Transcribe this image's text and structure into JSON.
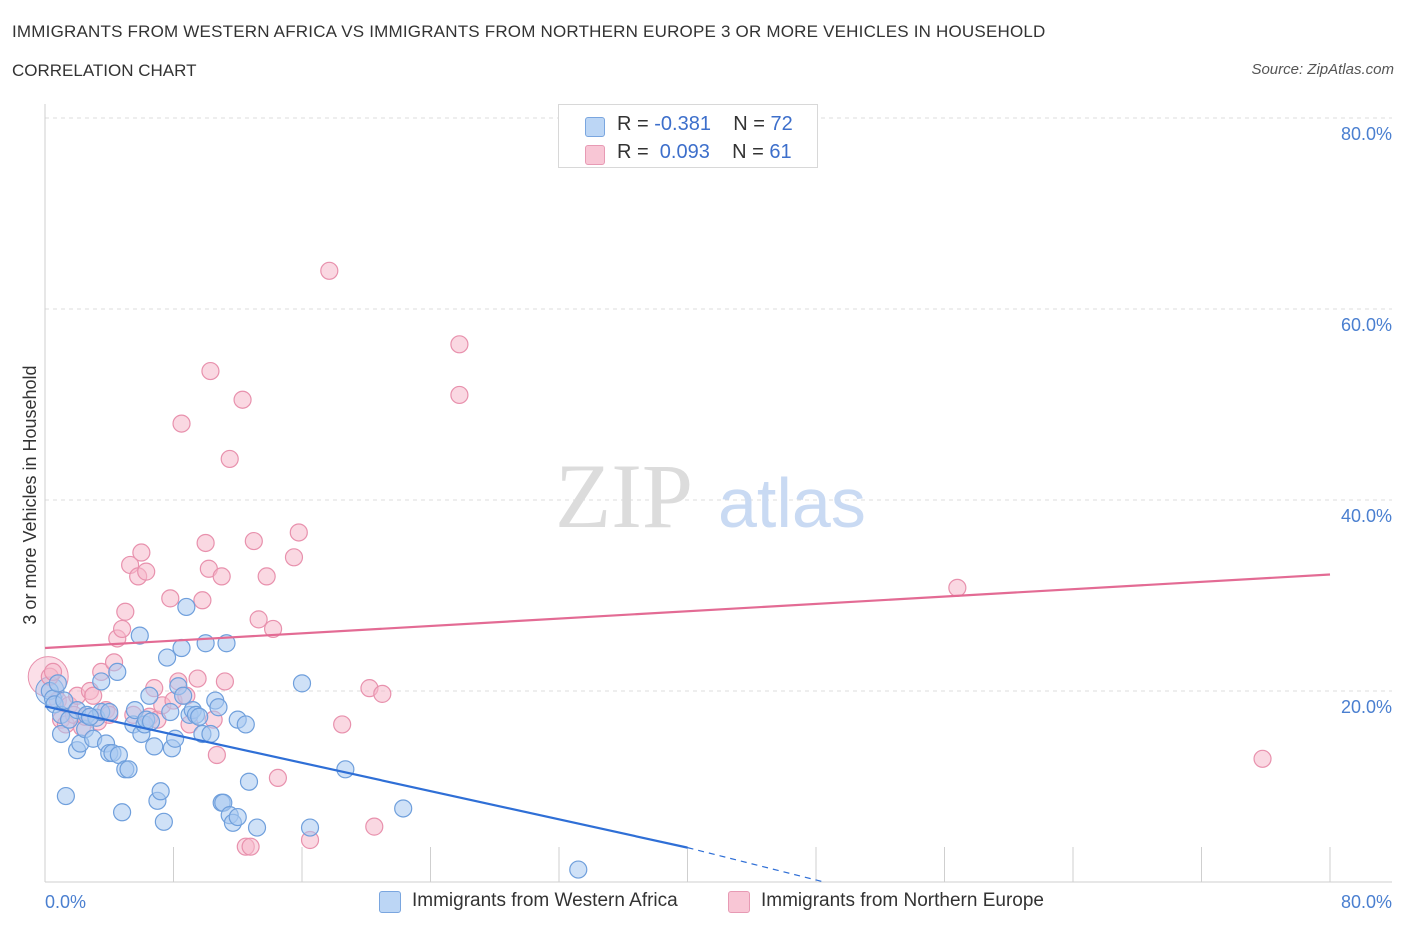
{
  "header": {
    "title": "IMMIGRANTS FROM WESTERN AFRICA VS IMMIGRANTS FROM NORTHERN EUROPE 3 OR MORE VEHICLES IN HOUSEHOLD",
    "subtitle": "CORRELATION CHART",
    "source": "Source: ZipAtlas.com"
  },
  "colors": {
    "blue_fill": "#a8c8f0",
    "blue_stroke": "#6f9fdc",
    "blue_line": "#2f6fd6",
    "pink_fill": "#f6b8cb",
    "pink_stroke": "#e891ad",
    "pink_line": "#e36b94",
    "grid": "#dcdcdc",
    "tick_text": "#4a7fd0"
  },
  "legend": {
    "series": [
      {
        "r_label": "R = ",
        "r_value": "-0.381",
        "n_label": "N = ",
        "n_value": "72"
      },
      {
        "r_label": "R = ",
        "r_value": " 0.093",
        "n_label": "N = ",
        "n_value": "61"
      }
    ]
  },
  "watermark": {
    "zip": "ZIP",
    "atlas": "atlas"
  },
  "chart_data": {
    "type": "scatter",
    "title": "IMMIGRANTS FROM WESTERN AFRICA VS IMMIGRANTS FROM NORTHERN EUROPE 3 OR MORE VEHICLES IN HOUSEHOLD",
    "xlabel": "",
    "ylabel": "3 or more Vehicles in Household",
    "xlim": [
      0,
      80
    ],
    "ylim": [
      0,
      80
    ],
    "x_tick_labels": [
      "0.0%",
      "80.0%"
    ],
    "y_ticks": [
      20,
      40,
      60,
      80
    ],
    "y_tick_labels": [
      "20.0%",
      "40.0%",
      "60.0%",
      "80.0%"
    ],
    "grid": true,
    "series": [
      {
        "name": "Immigrants from Western Africa",
        "r": -0.381,
        "n": 72,
        "trend": {
          "x0": 0,
          "y0": 18.4,
          "x1": 40,
          "y1": 3.6,
          "dash_to_x": 48.5,
          "dash_to_y": 0
        },
        "points": [
          [
            0.3,
            20.0
          ],
          [
            0.5,
            19.2
          ],
          [
            0.6,
            18.6
          ],
          [
            0.8,
            20.8
          ],
          [
            1.0,
            17.5
          ],
          [
            1.2,
            19.0
          ],
          [
            1.0,
            15.5
          ],
          [
            1.5,
            17.0
          ],
          [
            1.3,
            9.0
          ],
          [
            2.0,
            13.8
          ],
          [
            2.0,
            18.0
          ],
          [
            2.2,
            14.5
          ],
          [
            2.5,
            16.0
          ],
          [
            2.6,
            17.5
          ],
          [
            3.0,
            15.0
          ],
          [
            3.2,
            17.2
          ],
          [
            3.5,
            21.0
          ],
          [
            3.5,
            17.8
          ],
          [
            3.8,
            14.5
          ],
          [
            4.0,
            13.5
          ],
          [
            4.2,
            13.5
          ],
          [
            4.5,
            22.0
          ],
          [
            4.6,
            13.3
          ],
          [
            4.8,
            7.3
          ],
          [
            5.0,
            11.8
          ],
          [
            5.2,
            11.8
          ],
          [
            5.5,
            16.5
          ],
          [
            5.6,
            18.0
          ],
          [
            5.9,
            25.8
          ],
          [
            6.0,
            15.5
          ],
          [
            6.2,
            16.5
          ],
          [
            6.3,
            17.0
          ],
          [
            6.5,
            19.5
          ],
          [
            6.6,
            16.8
          ],
          [
            6.8,
            14.2
          ],
          [
            7.0,
            8.5
          ],
          [
            7.2,
            9.5
          ],
          [
            7.4,
            6.3
          ],
          [
            7.6,
            23.5
          ],
          [
            7.8,
            17.8
          ],
          [
            7.9,
            14.0
          ],
          [
            8.1,
            15.0
          ],
          [
            8.3,
            20.5
          ],
          [
            8.5,
            24.5
          ],
          [
            8.6,
            19.5
          ],
          [
            8.8,
            28.8
          ],
          [
            9.0,
            17.5
          ],
          [
            9.2,
            18.0
          ],
          [
            9.4,
            17.5
          ],
          [
            9.6,
            17.3
          ],
          [
            9.8,
            15.5
          ],
          [
            10.0,
            25.0
          ],
          [
            10.3,
            15.5
          ],
          [
            10.6,
            19.0
          ],
          [
            10.8,
            18.3
          ],
          [
            11.0,
            8.3
          ],
          [
            11.1,
            8.3
          ],
          [
            11.3,
            25.0
          ],
          [
            11.5,
            7.0
          ],
          [
            11.7,
            6.2
          ],
          [
            12.0,
            17.0
          ],
          [
            12.5,
            16.5
          ],
          [
            12.7,
            10.5
          ],
          [
            13.2,
            5.7
          ],
          [
            16.0,
            20.8
          ],
          [
            16.5,
            5.7
          ],
          [
            18.7,
            11.8
          ],
          [
            22.3,
            7.7
          ],
          [
            33.2,
            1.3
          ],
          [
            12.0,
            6.8
          ],
          [
            2.8,
            17.3
          ],
          [
            4.0,
            17.8
          ]
        ]
      },
      {
        "name": "Immigrants from Northern Europe",
        "r": 0.093,
        "n": 61,
        "trend": {
          "x0": 0,
          "y0": 24.5,
          "x1": 80,
          "y1": 32.2
        },
        "points": [
          [
            0.3,
            21.5
          ],
          [
            0.5,
            22.0
          ],
          [
            0.8,
            19.0
          ],
          [
            1.0,
            17.0
          ],
          [
            1.3,
            16.5
          ],
          [
            1.5,
            18.5
          ],
          [
            1.8,
            17.5
          ],
          [
            2.0,
            19.5
          ],
          [
            2.3,
            16.2
          ],
          [
            2.5,
            17.3
          ],
          [
            2.8,
            20.0
          ],
          [
            3.0,
            19.5
          ],
          [
            3.3,
            16.8
          ],
          [
            3.5,
            22.0
          ],
          [
            3.8,
            18.0
          ],
          [
            4.0,
            17.5
          ],
          [
            4.3,
            23.0
          ],
          [
            4.5,
            25.5
          ],
          [
            4.8,
            26.5
          ],
          [
            5.0,
            28.3
          ],
          [
            5.3,
            33.2
          ],
          [
            5.5,
            17.5
          ],
          [
            5.8,
            32.0
          ],
          [
            6.0,
            34.5
          ],
          [
            6.3,
            32.5
          ],
          [
            6.5,
            17.3
          ],
          [
            6.8,
            20.3
          ],
          [
            7.0,
            17.0
          ],
          [
            7.3,
            18.5
          ],
          [
            7.8,
            29.7
          ],
          [
            8.0,
            19.0
          ],
          [
            8.3,
            21.0
          ],
          [
            8.5,
            48.0
          ],
          [
            8.8,
            19.5
          ],
          [
            9.0,
            16.5
          ],
          [
            9.5,
            21.3
          ],
          [
            9.8,
            29.5
          ],
          [
            10.0,
            35.5
          ],
          [
            10.2,
            32.8
          ],
          [
            10.3,
            53.5
          ],
          [
            10.5,
            17.0
          ],
          [
            10.7,
            13.3
          ],
          [
            11.0,
            32.0
          ],
          [
            11.2,
            21.0
          ],
          [
            11.5,
            44.3
          ],
          [
            12.3,
            50.5
          ],
          [
            12.5,
            3.7
          ],
          [
            12.8,
            3.7
          ],
          [
            13.0,
            35.7
          ],
          [
            13.3,
            27.5
          ],
          [
            13.8,
            32.0
          ],
          [
            14.2,
            26.5
          ],
          [
            14.5,
            10.9
          ],
          [
            15.5,
            34.0
          ],
          [
            15.8,
            36.6
          ],
          [
            16.5,
            4.4
          ],
          [
            17.7,
            64.0
          ],
          [
            18.5,
            16.5
          ],
          [
            20.2,
            20.3
          ],
          [
            20.5,
            5.8
          ],
          [
            21.0,
            19.7
          ]
        ],
        "extra_points": [
          [
            25.8,
            56.3
          ],
          [
            25.8,
            51.0
          ],
          [
            56.8,
            30.8
          ],
          [
            75.8,
            12.9
          ]
        ]
      }
    ]
  },
  "bottom_legend": {
    "items": [
      "Immigrants from Western Africa",
      "Immigrants from Northern Europe"
    ]
  },
  "axes": {
    "ylabel": "3 or more Vehicles in Household",
    "x_min_label": "0.0%",
    "x_max_label": "80.0%"
  }
}
